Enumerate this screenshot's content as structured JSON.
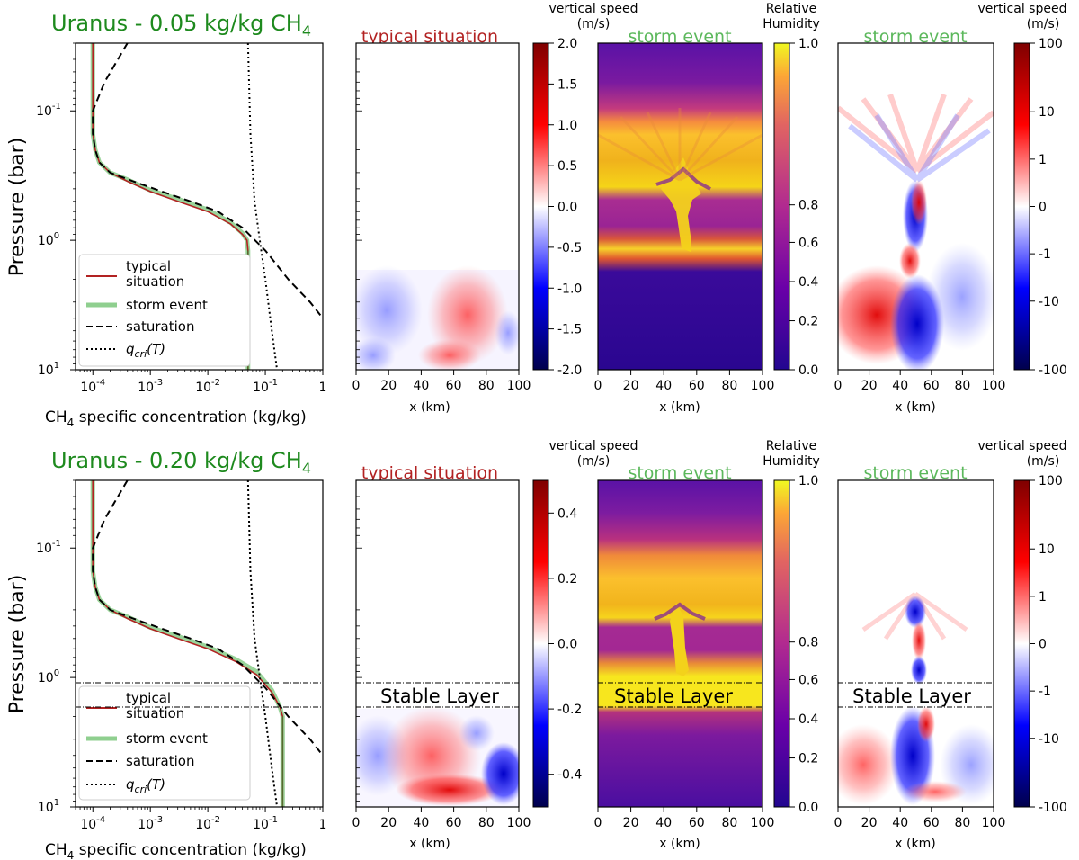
{
  "figure": {
    "rows": [
      {
        "id": "row1",
        "title": "Uranus - 0.05 kg/kg CH",
        "title_sub": "4",
        "stable_layer": null,
        "panels": {
          "profile": {
            "ylabel": "Pressure (bar)",
            "xlabel_main": "CH",
            "xlabel_sub": "4",
            "xlabel_rest": " specific concentration (kg/kg)",
            "legend": [
              {
                "label_lines": [
                  "typical",
                  "situation"
                ],
                "color": "#b22222",
                "style": "solid"
              },
              {
                "label_lines": [
                  "storm event"
                ],
                "color": "#8fcf8f",
                "style": "thick"
              },
              {
                "label_lines": [
                  "saturation"
                ],
                "color": "#000000",
                "style": "dashed"
              },
              {
                "label_lines": [
                  "q_cri(T)"
                ],
                "color": "#000000",
                "style": "dotted"
              }
            ]
          },
          "w_typical": {
            "subtitle": "typical situation",
            "cb_title": [
              "vertical speed",
              "(m/s)"
            ],
            "xlabel": "x (km)",
            "cb_ticks": [
              "2.0",
              "1.5",
              "1.0",
              "0.5",
              "0.0",
              "-0.5",
              "-1.0",
              "-1.5",
              "-2.0"
            ]
          },
          "rh_storm": {
            "subtitle": "storm event",
            "cb_title": [
              "Relative",
              "Humidity"
            ],
            "xlabel": "x (km)",
            "cb_ticks": [
              "1.0",
              "0.8",
              "0.6",
              "0.4",
              "0.2",
              "0.0"
            ]
          },
          "w_storm": {
            "subtitle": "storm event",
            "cb_title": [
              "vertical speed",
              "(m/s)"
            ],
            "xlabel": "x (km)",
            "cb_ticks": [
              "100",
              "10",
              "1",
              "0",
              "-1",
              "-10",
              "-100"
            ]
          }
        }
      },
      {
        "id": "row2",
        "title": "Uranus - 0.20 kg/kg CH",
        "title_sub": "4",
        "stable_layer": {
          "label": "Stable Layer"
        },
        "panels": {
          "profile": {
            "ylabel": "Pressure (bar)",
            "xlabel_main": "CH",
            "xlabel_sub": "4",
            "xlabel_rest": " specific concentration (kg/kg)",
            "legend": [
              {
                "label_lines": [
                  "typical",
                  "situation"
                ],
                "color": "#b22222",
                "style": "solid"
              },
              {
                "label_lines": [
                  "storm event"
                ],
                "color": "#8fcf8f",
                "style": "thick"
              },
              {
                "label_lines": [
                  "saturation"
                ],
                "color": "#000000",
                "style": "dashed"
              },
              {
                "label_lines": [
                  "q_cri(T)"
                ],
                "color": "#000000",
                "style": "dotted"
              }
            ]
          },
          "w_typical": {
            "subtitle": "typical situation",
            "cb_title": [
              "vertical speed",
              "(m/s)"
            ],
            "xlabel": "x (km)",
            "cb_ticks": [
              "0.4",
              "0.2",
              "0.0",
              "-0.2",
              "-0.4"
            ]
          },
          "rh_storm": {
            "subtitle": "storm event",
            "cb_title": [
              "Relative",
              "Humidity"
            ],
            "xlabel": "x (km)",
            "cb_ticks": [
              "1.0",
              "0.8",
              "0.6",
              "0.4",
              "0.2",
              "0.0"
            ]
          },
          "w_storm": {
            "subtitle": "storm event",
            "cb_title": [
              "vertical speed",
              "(m/s)"
            ],
            "xlabel": "x (km)",
            "cb_ticks": [
              "100",
              "10",
              "1",
              "0",
              "-1",
              "-10",
              "-100"
            ]
          }
        }
      }
    ]
  },
  "chart_data": [
    {
      "type": "line",
      "title": "Uranus - 0.05 kg/kg CH4",
      "xscale": "log",
      "yscale": "log",
      "xlim": [
        5e-05,
        1
      ],
      "ylim": [
        10,
        0.03
      ],
      "xlabel": "CH4 specific concentration (kg/kg)",
      "ylabel": "Pressure (bar)",
      "x_tick_labels": [
        "10^-4",
        "10^-3",
        "10^-2",
        "10^-1",
        "1"
      ],
      "y_tick_labels": [
        "10^-1",
        "10^0",
        "10^1"
      ],
      "series": [
        {
          "name": "typical situation",
          "x": [
            0.0001,
            0.0001,
            0.0001,
            0.00011,
            0.00013,
            0.0002,
            0.0004,
            0.001,
            0.003,
            0.01,
            0.025,
            0.04,
            0.048,
            0.05,
            0.05
          ],
          "y": [
            0.03,
            0.08,
            0.15,
            0.2,
            0.25,
            0.3,
            0.35,
            0.42,
            0.5,
            0.6,
            0.75,
            0.9,
            1.0,
            1.2,
            10
          ]
        },
        {
          "name": "storm event",
          "x": [
            0.0001,
            0.0001,
            0.0001,
            0.00011,
            0.00013,
            0.0002,
            0.0004,
            0.001,
            0.003,
            0.01,
            0.025,
            0.04,
            0.048,
            0.05,
            0.05
          ],
          "y": [
            0.03,
            0.08,
            0.15,
            0.2,
            0.25,
            0.3,
            0.34,
            0.41,
            0.48,
            0.58,
            0.73,
            0.88,
            1.0,
            1.2,
            10
          ]
        },
        {
          "name": "saturation",
          "x": [
            0.0004,
            0.00016,
            0.0001,
            0.0001,
            0.00011,
            0.00013,
            0.0002,
            0.0005,
            0.0016,
            0.005,
            0.015,
            0.04,
            0.1,
            0.25,
            0.6,
            1
          ],
          "y": [
            0.03,
            0.06,
            0.1,
            0.15,
            0.2,
            0.25,
            0.3,
            0.35,
            0.42,
            0.5,
            0.6,
            0.8,
            1.2,
            2,
            3,
            4
          ]
        },
        {
          "name": "q_cri(T)",
          "x": [
            0.05,
            0.055,
            0.065,
            0.08,
            0.1,
            0.13,
            0.16
          ],
          "y": [
            0.03,
            0.15,
            0.5,
            1.0,
            2.0,
            5.0,
            10
          ]
        }
      ]
    },
    {
      "type": "heatmap",
      "subtitle": "typical situation",
      "x_range": [
        0,
        100
      ],
      "x_ticks": [
        0,
        20,
        40,
        60,
        80,
        100
      ],
      "xlabel": "x (km)",
      "colorbar": {
        "label": "vertical speed (m/s)",
        "range": [
          -2.0,
          2.0
        ],
        "colormap": "seismic"
      },
      "description": "weak red updraft near x 50-80 km and blue downdraft near x 10-40 km below 1.5 bar"
    },
    {
      "type": "heatmap",
      "subtitle": "storm event",
      "x_range": [
        0,
        100
      ],
      "x_ticks": [
        0,
        20,
        40,
        60,
        80,
        100
      ],
      "xlabel": "x (km)",
      "colorbar": {
        "label": "Relative Humidity",
        "range": [
          0.0,
          1.0
        ],
        "colormap": "plasma"
      }
    },
    {
      "type": "heatmap",
      "subtitle": "storm event",
      "x_range": [
        0,
        100
      ],
      "x_ticks": [
        0,
        20,
        40,
        60,
        80,
        100
      ],
      "xlabel": "x (km)",
      "colorbar": {
        "label": "vertical speed (m/s)",
        "range": [
          -100,
          100
        ],
        "scale": "symlog",
        "colormap": "seismic"
      }
    },
    {
      "type": "line",
      "title": "Uranus - 0.20 kg/kg CH4",
      "xscale": "log",
      "yscale": "log",
      "xlim": [
        5e-05,
        1
      ],
      "ylim": [
        10,
        0.03
      ],
      "xlabel": "CH4 specific concentration (kg/kg)",
      "ylabel": "Pressure (bar)",
      "stable_layer_bar": [
        1.1,
        1.7
      ],
      "series": [
        {
          "name": "typical situation",
          "x": [
            0.0001,
            0.0001,
            0.0001,
            0.00011,
            0.00013,
            0.0002,
            0.0004,
            0.001,
            0.003,
            0.01,
            0.03,
            0.07,
            0.13,
            0.18,
            0.2,
            0.2
          ],
          "y": [
            0.03,
            0.08,
            0.15,
            0.2,
            0.25,
            0.3,
            0.35,
            0.42,
            0.5,
            0.6,
            0.75,
            0.95,
            1.3,
            1.7,
            2.0,
            10
          ]
        },
        {
          "name": "storm event",
          "x": [
            0.0001,
            0.0001,
            0.0001,
            0.00011,
            0.00013,
            0.0002,
            0.0004,
            0.001,
            0.003,
            0.01,
            0.03,
            0.07,
            0.13,
            0.18,
            0.2,
            0.2
          ],
          "y": [
            0.03,
            0.08,
            0.15,
            0.2,
            0.25,
            0.3,
            0.34,
            0.41,
            0.48,
            0.58,
            0.72,
            0.9,
            1.25,
            1.7,
            2.0,
            10
          ]
        },
        {
          "name": "saturation",
          "x": [
            0.0004,
            0.00016,
            0.0001,
            0.0001,
            0.00011,
            0.00013,
            0.0002,
            0.0005,
            0.0016,
            0.005,
            0.015,
            0.04,
            0.1,
            0.25,
            0.6,
            1
          ],
          "y": [
            0.03,
            0.06,
            0.1,
            0.15,
            0.2,
            0.25,
            0.3,
            0.35,
            0.42,
            0.5,
            0.6,
            0.8,
            1.2,
            2,
            3,
            4
          ]
        },
        {
          "name": "q_cri(T)",
          "x": [
            0.05,
            0.055,
            0.065,
            0.08,
            0.1,
            0.13,
            0.16
          ],
          "y": [
            0.03,
            0.15,
            0.5,
            1.0,
            2.0,
            5.0,
            10
          ]
        }
      ]
    },
    {
      "type": "heatmap",
      "subtitle": "typical situation",
      "x_range": [
        0,
        100
      ],
      "xlabel": "x (km)",
      "colorbar": {
        "label": "vertical speed (m/s)",
        "range": [
          -0.5,
          0.5
        ],
        "colormap": "seismic"
      }
    },
    {
      "type": "heatmap",
      "subtitle": "storm event",
      "x_range": [
        0,
        100
      ],
      "xlabel": "x (km)",
      "colorbar": {
        "label": "Relative Humidity",
        "range": [
          0.0,
          1.0
        ],
        "colormap": "plasma"
      }
    },
    {
      "type": "heatmap",
      "subtitle": "storm event",
      "x_range": [
        0,
        100
      ],
      "xlabel": "x (km)",
      "colorbar": {
        "label": "vertical speed (m/s)",
        "range": [
          -100,
          100
        ],
        "scale": "symlog",
        "colormap": "seismic"
      }
    }
  ]
}
